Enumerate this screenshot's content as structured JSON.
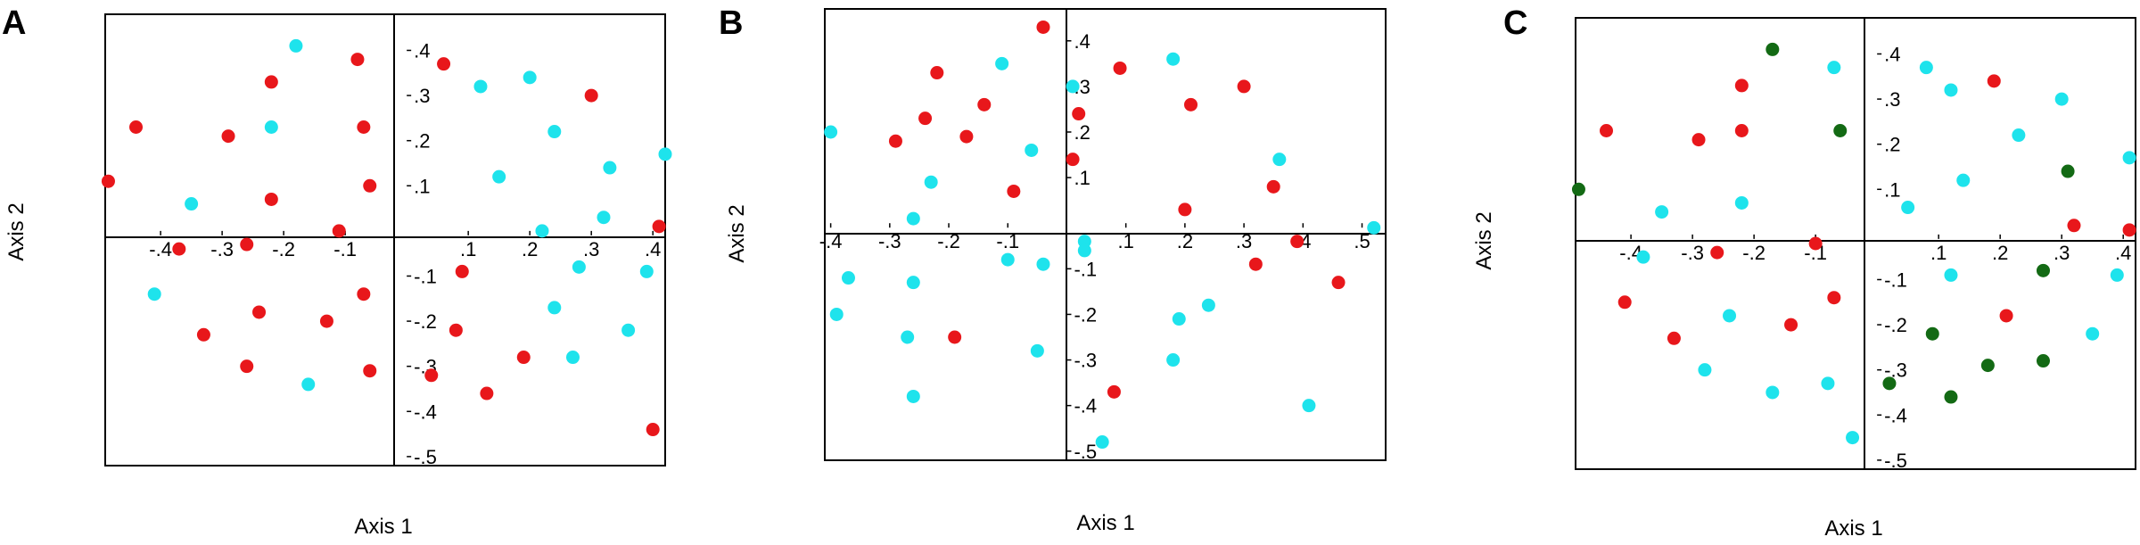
{
  "chart_data": [
    {
      "type": "scatter",
      "panel": "A",
      "xlabel": "Axis 1",
      "ylabel": "Axis 2",
      "xlim": [
        -0.49,
        0.42
      ],
      "ylim": [
        -0.52,
        0.48
      ],
      "xticks": [
        -0.4,
        -0.3,
        -0.2,
        -0.1,
        0.1,
        0.2,
        0.3,
        0.4
      ],
      "yticks": [
        -0.5,
        -0.4,
        -0.3,
        -0.2,
        -0.1,
        0.1,
        0.2,
        0.3,
        0.4
      ],
      "grid": false,
      "colors": {
        "red": "#e8171b",
        "cyan": "#1ee3ec"
      },
      "series": [
        {
          "color": "red",
          "x": [
            -0.485,
            -0.44,
            -0.29,
            -0.22,
            -0.22,
            -0.08,
            -0.07,
            -0.06,
            0.06,
            0.3,
            0.41,
            -0.37,
            -0.26,
            -0.11,
            -0.33,
            -0.24,
            -0.13,
            -0.26,
            -0.07,
            -0.06,
            0.09,
            0.08,
            0.19,
            0.13,
            0.04,
            0.4
          ],
          "y": [
            0.11,
            0.23,
            0.21,
            0.33,
            0.07,
            0.38,
            0.23,
            0.1,
            0.37,
            0.3,
            0.01,
            -0.04,
            -0.03,
            0.0,
            -0.23,
            -0.18,
            -0.2,
            -0.3,
            -0.14,
            -0.31,
            -0.09,
            -0.22,
            -0.28,
            -0.36,
            -0.32,
            -0.44
          ]
        },
        {
          "color": "cyan",
          "x": [
            -0.18,
            -0.22,
            -0.35,
            -0.41,
            -0.16,
            0.12,
            0.2,
            0.24,
            0.15,
            0.33,
            0.32,
            0.22,
            0.28,
            0.42,
            0.39,
            0.24,
            0.36,
            0.27
          ],
          "y": [
            0.41,
            0.23,
            0.06,
            -0.14,
            -0.34,
            0.32,
            0.34,
            0.22,
            0.12,
            0.14,
            0.03,
            0.0,
            -0.08,
            0.17,
            -0.09,
            -0.17,
            -0.22,
            -0.28
          ]
        }
      ]
    },
    {
      "type": "scatter",
      "panel": "B",
      "xlabel": "Axis 1",
      "ylabel": "Axis 2",
      "xlim": [
        -0.41,
        0.54
      ],
      "ylim": [
        -0.52,
        0.47
      ],
      "xticks": [
        -0.4,
        -0.3,
        -0.2,
        -0.1,
        0.1,
        0.2,
        0.3,
        0.4,
        0.5
      ],
      "yticks": [
        -0.5,
        -0.4,
        -0.3,
        -0.2,
        -0.1,
        0.1,
        0.2,
        0.3,
        0.4
      ],
      "grid": false,
      "colors": {
        "red": "#e8171b",
        "cyan": "#1ee3ec"
      },
      "series": [
        {
          "color": "red",
          "x": [
            -0.04,
            -0.22,
            -0.14,
            -0.24,
            -0.17,
            -0.29,
            -0.09,
            0.02,
            0.09,
            0.21,
            0.3,
            0.01,
            0.2,
            0.35,
            0.32,
            0.39,
            0.46,
            -0.19,
            0.08
          ],
          "y": [
            0.43,
            0.33,
            0.26,
            0.23,
            0.19,
            0.18,
            0.07,
            0.24,
            0.34,
            0.26,
            0.3,
            0.14,
            0.03,
            0.08,
            -0.09,
            -0.04,
            -0.13,
            -0.25,
            -0.37
          ]
        },
        {
          "color": "cyan",
          "x": [
            -0.11,
            -0.4,
            -0.06,
            -0.23,
            -0.26,
            0.01,
            -0.37,
            -0.39,
            -0.26,
            -0.1,
            -0.27,
            -0.04,
            -0.26,
            -0.05,
            0.03,
            0.18,
            0.36,
            0.52,
            0.03,
            0.19,
            0.24,
            0.18,
            0.41,
            0.06
          ],
          "y": [
            0.35,
            0.2,
            0.16,
            0.09,
            0.01,
            0.3,
            -0.12,
            -0.2,
            -0.13,
            -0.08,
            -0.25,
            -0.09,
            -0.38,
            -0.28,
            -0.04,
            0.36,
            0.14,
            -0.01,
            -0.06,
            -0.21,
            -0.18,
            -0.3,
            -0.4,
            -0.48
          ]
        }
      ]
    },
    {
      "type": "scatter",
      "panel": "C",
      "xlabel": "Axis 1",
      "ylabel": "Axis 2",
      "xlim": [
        -0.49,
        0.42
      ],
      "ylim": [
        -0.52,
        0.48
      ],
      "xticks": [
        -0.4,
        -0.3,
        -0.2,
        -0.1,
        0.1,
        0.2,
        0.3,
        0.4
      ],
      "yticks": [
        -0.5,
        -0.4,
        -0.3,
        -0.2,
        -0.1,
        0.1,
        0.2,
        0.3,
        0.4
      ],
      "grid": false,
      "colors": {
        "red": "#e8171b",
        "cyan": "#1ee3ec",
        "green": "#136a14"
      },
      "series": [
        {
          "color": "red",
          "x": [
            -0.44,
            -0.29,
            -0.22,
            -0.22,
            0.19,
            -0.26,
            -0.1,
            -0.41,
            -0.33,
            -0.14,
            -0.07,
            0.21,
            0.32,
            0.41
          ],
          "y": [
            0.23,
            0.21,
            0.33,
            0.23,
            0.34,
            -0.04,
            -0.02,
            -0.15,
            -0.23,
            -0.2,
            -0.14,
            -0.18,
            0.02,
            0.01
          ]
        },
        {
          "color": "cyan",
          "x": [
            -0.07,
            -0.35,
            -0.22,
            -0.38,
            -0.24,
            -0.28,
            -0.08,
            -0.17,
            -0.04,
            0.08,
            0.12,
            0.3,
            0.23,
            0.14,
            0.05,
            0.12,
            0.41,
            0.39,
            0.35
          ],
          "y": [
            0.37,
            0.05,
            0.07,
            -0.05,
            -0.18,
            -0.3,
            -0.33,
            -0.35,
            -0.45,
            0.37,
            0.32,
            0.3,
            0.22,
            0.12,
            0.06,
            -0.09,
            0.17,
            -0.09,
            -0.22
          ]
        },
        {
          "color": "green",
          "x": [
            -0.17,
            -0.06,
            -0.485,
            0.31,
            0.27,
            0.09,
            0.18,
            0.27,
            0.12,
            0.02
          ],
          "y": [
            0.41,
            0.23,
            0.1,
            0.14,
            -0.08,
            -0.22,
            -0.29,
            -0.28,
            -0.36,
            -0.33
          ]
        }
      ]
    }
  ]
}
